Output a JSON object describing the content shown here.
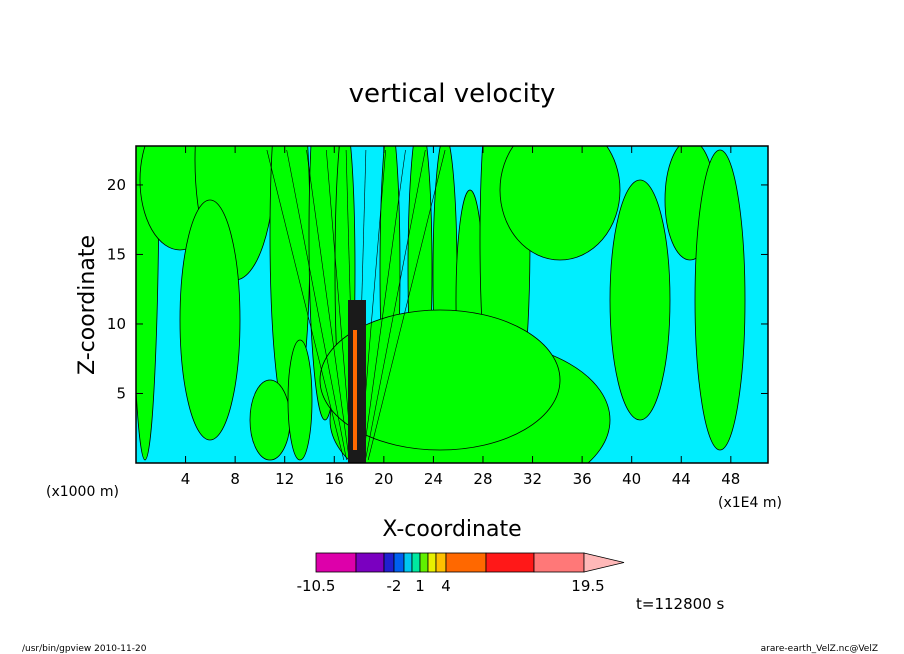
{
  "chart_data": {
    "type": "heatmap",
    "title": "vertical velocity",
    "xlabel": "X-coordinate",
    "ylabel": "Z-coordinate",
    "x_unit_left": "(x1000 m)",
    "x_unit_right": "(x1E4 m)",
    "xlim": [
      0,
      51
    ],
    "ylim": [
      0,
      22.8
    ],
    "x_ticks": [
      "4",
      "8",
      "12",
      "16",
      "20",
      "24",
      "28",
      "32",
      "36",
      "40",
      "44",
      "48"
    ],
    "x_tick_values": [
      4,
      8,
      12,
      16,
      20,
      24,
      28,
      32,
      36,
      40,
      44,
      48
    ],
    "y_ticks": [
      "5",
      "10",
      "15",
      "20"
    ],
    "y_tick_values": [
      5,
      10,
      15,
      20
    ],
    "colorbar": {
      "colors": [
        "#dd00aa",
        "#7a00c0",
        "#2020d0",
        "#0060f0",
        "#00c8f0",
        "#00e8a0",
        "#60f000",
        "#e8f000",
        "#ffc000",
        "#ff6800",
        "#ff1818",
        "#ff7878",
        "#ffb8b8"
      ],
      "labels": [
        "-10.5",
        "-2",
        "1",
        "4",
        "19.5"
      ],
      "label_values": [
        -10.5,
        -2,
        1,
        4,
        19.5
      ]
    },
    "field_colors": {
      "positive": "#00ff00",
      "negative": "#00eeff",
      "core": "#1a1a1a"
    },
    "time_label": "t=112800 s"
  },
  "footer": {
    "left": "/usr/bin/gpview  2010-11-20",
    "right": "arare-earth_VelZ.nc@VelZ"
  }
}
